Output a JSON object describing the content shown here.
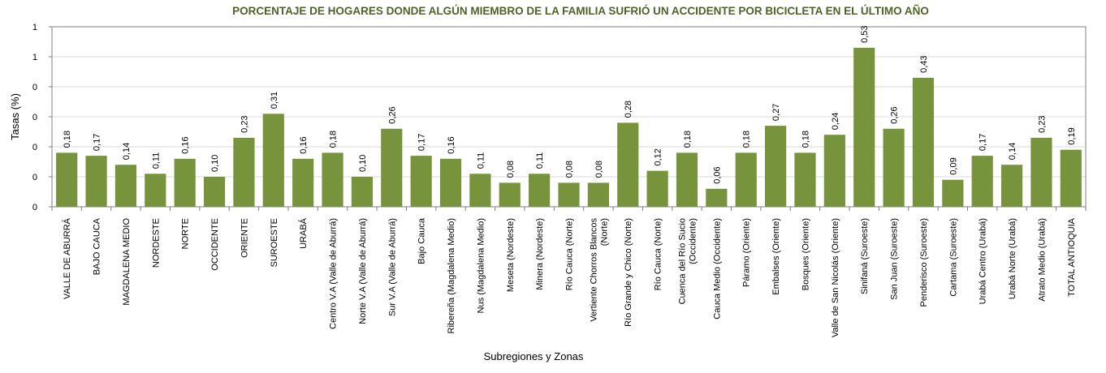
{
  "chart_data": {
    "type": "bar",
    "title": "PORCENTAJE DE HOGARES DONDE ALGÚN MIEMBRO DE LA FAMILIA SUFRIÓ UN ACCIDENTE POR  BICICLETA EN EL ÚLTIMO AÑO",
    "xlabel": "Subregiones y Zonas",
    "ylabel": "Tasas (%)",
    "ylim": [
      0,
      0.6
    ],
    "ytick_values": [
      0,
      0.1,
      0.2,
      0.3,
      0.4,
      0.5,
      0.6
    ],
    "ytick_labels": [
      "0",
      "0",
      "0",
      "0",
      "0",
      "1",
      "1"
    ],
    "grid": true,
    "bar_color": "#77933c",
    "categories": [
      [
        "VALLE DE ABURRÁ"
      ],
      [
        "BAJO CAUCA"
      ],
      [
        "MAGDALENA MEDIO"
      ],
      [
        "NORDESTE"
      ],
      [
        "NORTE"
      ],
      [
        "OCCIDENTE"
      ],
      [
        "ORIENTE"
      ],
      [
        "SUROESTE"
      ],
      [
        "URABÁ"
      ],
      [
        "Centro V.A (Valle de Aburrá)"
      ],
      [
        "Norte V.A (Valle de Aburrá)"
      ],
      [
        "Sur V.A (Valle de Aburrá)"
      ],
      [
        "Bajo Cauca"
      ],
      [
        "Ribereña  (Magdalena Medio)"
      ],
      [
        "Nus  (Magdalena Medio)"
      ],
      [
        "Meseta  (Nordeste)"
      ],
      [
        "Minera  (Nordeste)"
      ],
      [
        "Río Cauca  (Norte)"
      ],
      [
        "Vertiente Chorros Blancos",
        "(Norte)"
      ],
      [
        "Río Grande y Chico  (Norte)"
      ],
      [
        "Río Cauca (Norte)"
      ],
      [
        "Cuenca del Río Sucio",
        "(Occidente)"
      ],
      [
        "Cauca Medio  (Occidente)"
      ],
      [
        "Páramo  (Oriente)"
      ],
      [
        "Embalses  (Oriente)"
      ],
      [
        "Bosques  (Oriente)"
      ],
      [
        "Valle de San Nicolás (Oriente)"
      ],
      [
        "Sinifaná  (Suroeste)"
      ],
      [
        "San Juan  (Suroeste)"
      ],
      [
        "Penderisco  (Suroeste)"
      ],
      [
        "Cartama  (Suroeste)"
      ],
      [
        "Urabá Centro  (Urabá)"
      ],
      [
        "Urabá Norte  (Urabá)"
      ],
      [
        "Atrato Medio  (Urabá)"
      ],
      [
        "TOTAL ANTIOQUIA"
      ]
    ],
    "values": [
      0.18,
      0.17,
      0.14,
      0.11,
      0.16,
      0.1,
      0.23,
      0.31,
      0.16,
      0.18,
      0.1,
      0.26,
      0.17,
      0.16,
      0.11,
      0.08,
      0.11,
      0.08,
      0.08,
      0.28,
      0.12,
      0.18,
      0.06,
      0.18,
      0.27,
      0.18,
      0.24,
      0.53,
      0.26,
      0.43,
      0.09,
      0.17,
      0.14,
      0.23,
      0.19
    ],
    "data_labels": [
      "0,18",
      "0,17",
      "0,14",
      "0,11",
      "0,16",
      "0,10",
      "0,23",
      "0,31",
      "0,16",
      "0,18",
      "0,10",
      "0,26",
      "0,17",
      "0,16",
      "0,11",
      "0,08",
      "0,11",
      "0,08",
      "0,08",
      "0,28",
      "0,12",
      "0,18",
      "0,06",
      "0,18",
      "0,27",
      "0,18",
      "0,24",
      "0,53",
      "0,26",
      "0,43",
      "0,09",
      "0,17",
      "0,14",
      "0,23",
      "0,19"
    ]
  }
}
